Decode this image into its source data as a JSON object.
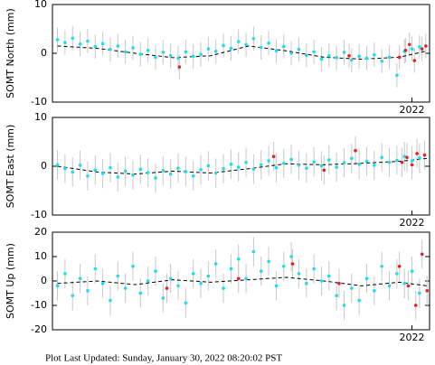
{
  "chart_data": [
    {
      "type": "scatter",
      "ylabel": "SOMT North (mm)",
      "xlim": [
        2019.14,
        2022.14
      ],
      "xticks": [
        2022
      ],
      "ylim": [
        -10,
        10
      ],
      "yticks": [
        -10,
        0,
        10
      ],
      "series": [
        {
          "mode": "markers",
          "color": "#20dcec",
          "error": 2.5,
          "x": [
            2019.18,
            2019.24,
            2019.3,
            2019.36,
            2019.42,
            2019.48,
            2019.54,
            2019.6,
            2019.66,
            2019.72,
            2019.78,
            2019.84,
            2019.9,
            2019.96,
            2020.02,
            2020.08,
            2020.14,
            2020.2,
            2020.26,
            2020.32,
            2020.38,
            2020.44,
            2020.5,
            2020.56,
            2020.62,
            2020.68,
            2020.74,
            2020.8,
            2020.86,
            2020.92,
            2020.98,
            2021.04,
            2021.1,
            2021.16,
            2021.22,
            2021.28,
            2021.34,
            2021.4,
            2021.46,
            2021.52,
            2021.58,
            2021.64,
            2021.7,
            2021.76,
            2021.82,
            2021.88,
            2021.94,
            2022.0,
            2022.06
          ],
          "values": [
            2.8,
            2.2,
            3.1,
            1.9,
            2.5,
            1.4,
            2.0,
            0.8,
            1.5,
            0.3,
            1.1,
            -0.2,
            0.6,
            -0.8,
            0.2,
            -0.5,
            -1.0,
            0.3,
            -0.6,
            -0.2,
            0.9,
            0.4,
            1.6,
            1.0,
            2.4,
            1.8,
            3.0,
            1.2,
            2.1,
            0.5,
            1.4,
            0.0,
            0.8,
            -0.4,
            0.3,
            -1.2,
            -0.5,
            -0.9,
            0.2,
            -1.4,
            -0.6,
            -1.0,
            -0.3,
            -1.6,
            -0.8,
            -4.5,
            0.4,
            0.9,
            1.3
          ]
        },
        {
          "mode": "markers",
          "color": "#e8202a",
          "error": 2.5,
          "x": [
            2020.15,
            2021.5,
            2021.9,
            2021.95,
            2021.98,
            2022.02,
            2022.08,
            2022.11
          ],
          "values": [
            -2.8,
            -0.5,
            -0.8,
            0.6,
            1.8,
            -1.5,
            0.9,
            1.5
          ]
        },
        {
          "mode": "line",
          "color": "#000000",
          "x": [
            2019.18,
            2019.5,
            2019.8,
            2020.1,
            2020.4,
            2020.7,
            2021.0,
            2021.3,
            2021.6,
            2021.9,
            2022.12
          ],
          "values": [
            1.5,
            1.0,
            0.0,
            -0.9,
            -0.5,
            1.5,
            0.5,
            -0.8,
            -1.2,
            -0.8,
            0.5
          ]
        }
      ]
    },
    {
      "type": "scatter",
      "ylabel": "SOMT East (mm)",
      "xlim": [
        2019.14,
        2022.14
      ],
      "xticks": [
        2022
      ],
      "ylim": [
        -10,
        10
      ],
      "yticks": [
        -10,
        0,
        10
      ],
      "series": [
        {
          "mode": "markers",
          "color": "#20dcec",
          "error": 3,
          "x": [
            2019.18,
            2019.24,
            2019.3,
            2019.36,
            2019.42,
            2019.48,
            2019.54,
            2019.6,
            2019.66,
            2019.72,
            2019.78,
            2019.84,
            2019.9,
            2019.96,
            2020.02,
            2020.08,
            2020.14,
            2020.2,
            2020.26,
            2020.32,
            2020.38,
            2020.44,
            2020.5,
            2020.56,
            2020.62,
            2020.68,
            2020.74,
            2020.8,
            2020.86,
            2020.92,
            2020.98,
            2021.04,
            2021.1,
            2021.16,
            2021.22,
            2021.28,
            2021.34,
            2021.4,
            2021.46,
            2021.52,
            2021.58,
            2021.64,
            2021.7,
            2021.76,
            2021.82,
            2021.88,
            2021.94,
            2022.0,
            2022.06
          ],
          "values": [
            0.3,
            -0.5,
            -1.2,
            0.2,
            -2.0,
            -0.8,
            -1.5,
            -0.3,
            -2.2,
            -1.0,
            -1.8,
            -0.6,
            -1.3,
            -2.4,
            -0.9,
            -1.6,
            -0.4,
            -1.1,
            -2.0,
            -0.7,
            0.1,
            -1.4,
            -0.5,
            0.4,
            -0.2,
            0.8,
            -0.6,
            0.3,
            1.1,
            -0.3,
            0.6,
            1.4,
            0.2,
            -0.4,
            0.9,
            0.1,
            1.3,
            -0.2,
            0.7,
            1.6,
            0.4,
            1.0,
            0.2,
            1.8,
            0.8,
            1.2,
            2.0,
            1.1,
            1.7
          ]
        },
        {
          "mode": "markers",
          "color": "#e8202a",
          "error": 3,
          "x": [
            2020.9,
            2021.3,
            2021.55,
            2021.92,
            2021.96,
            2022.0,
            2022.04,
            2022.1
          ],
          "values": [
            2.0,
            -0.8,
            3.2,
            0.8,
            1.8,
            0.3,
            2.6,
            2.3
          ]
        },
        {
          "mode": "line",
          "color": "#000000",
          "x": [
            2019.18,
            2019.5,
            2019.8,
            2020.1,
            2020.4,
            2020.7,
            2021.0,
            2021.3,
            2021.6,
            2021.9,
            2022.12
          ],
          "values": [
            0,
            -1.2,
            -1.6,
            -1.0,
            -1.4,
            -0.5,
            0.5,
            0.3,
            0.6,
            1.0,
            1.6
          ]
        }
      ]
    },
    {
      "type": "scatter",
      "ylabel": "SOMT Up (mm)",
      "xlim": [
        2019.14,
        2022.14
      ],
      "xticks": [
        2022
      ],
      "ylim": [
        -20,
        20
      ],
      "yticks": [
        -20,
        -10,
        0,
        10,
        20
      ],
      "series": [
        {
          "mode": "markers",
          "color": "#20dcec",
          "error": 6,
          "x": [
            2019.18,
            2019.24,
            2019.3,
            2019.36,
            2019.42,
            2019.48,
            2019.54,
            2019.6,
            2019.66,
            2019.72,
            2019.78,
            2019.84,
            2019.9,
            2019.96,
            2020.02,
            2020.08,
            2020.14,
            2020.2,
            2020.26,
            2020.32,
            2020.38,
            2020.44,
            2020.5,
            2020.56,
            2020.62,
            2020.68,
            2020.74,
            2020.8,
            2020.86,
            2020.92,
            2020.98,
            2021.04,
            2021.1,
            2021.16,
            2021.22,
            2021.28,
            2021.34,
            2021.4,
            2021.46,
            2021.52,
            2021.58,
            2021.64,
            2021.7,
            2021.76,
            2021.82,
            2021.88,
            2021.94,
            2022.0,
            2022.06
          ],
          "values": [
            -2,
            3,
            -6,
            1,
            -4,
            5,
            -1,
            -8,
            2,
            -3,
            6,
            -5,
            0,
            4,
            -7,
            1,
            -2,
            -9,
            3,
            -1,
            2,
            7,
            -3,
            5,
            9,
            1,
            12,
            4,
            8,
            -2,
            6,
            10,
            3,
            -1,
            5,
            0,
            2,
            -6,
            -10,
            -3,
            -8,
            1,
            -4,
            6,
            -2,
            3,
            -1,
            4,
            -5
          ]
        },
        {
          "mode": "markers",
          "color": "#e8202a",
          "error": 6,
          "x": [
            2020.05,
            2020.62,
            2021.05,
            2021.42,
            2021.9,
            2021.97,
            2022.03,
            2022.08,
            2022.12
          ],
          "values": [
            -3,
            1,
            7,
            -1,
            6,
            -2,
            -10,
            11,
            -4
          ]
        },
        {
          "mode": "line",
          "color": "#000000",
          "x": [
            2019.18,
            2019.5,
            2019.8,
            2020.1,
            2020.4,
            2020.7,
            2021.0,
            2021.3,
            2021.6,
            2021.9,
            2022.12
          ],
          "values": [
            -1,
            0,
            -1.5,
            0.5,
            -0.5,
            0.5,
            1.5,
            0,
            -2,
            -0.5,
            -2
          ]
        }
      ]
    }
  ],
  "footer": "Plot Last Updated:   Sunday, January 30, 2022 08:20:02 PST"
}
